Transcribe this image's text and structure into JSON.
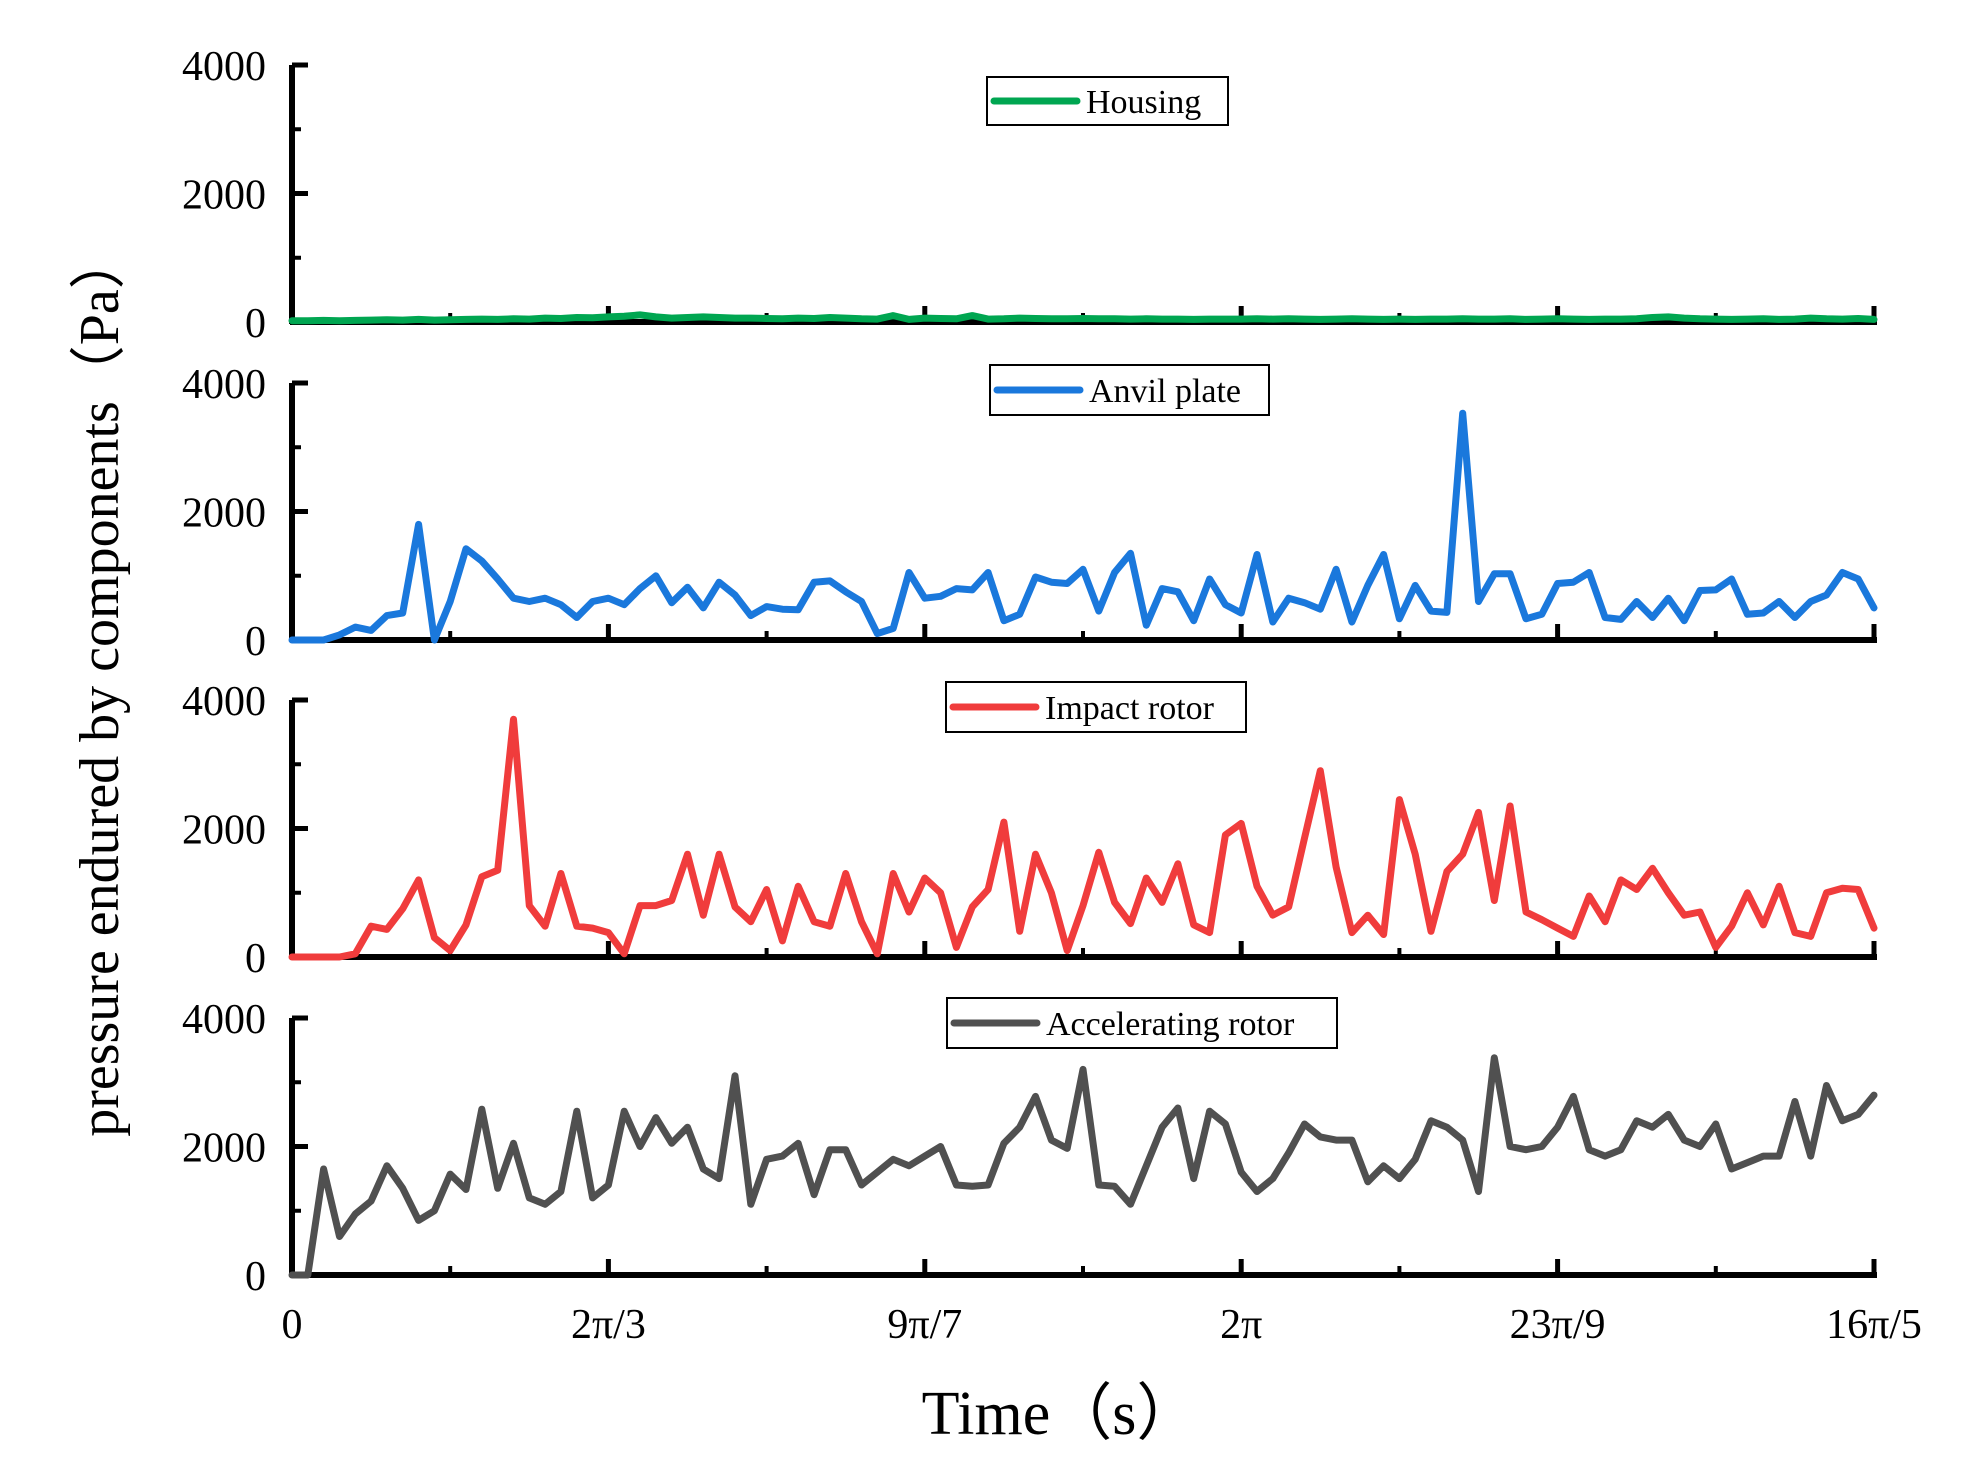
{
  "chart_data": {
    "type": "line",
    "xlabel": "Time（s）",
    "ylabel": "pressure endured by components（Pa）",
    "x_ticks": [
      "0",
      "2π/3",
      "9π/7",
      "2π",
      "23π/9",
      "16π/5"
    ],
    "y_ticks": [
      "0",
      "2000",
      "4000"
    ],
    "xlim": [
      0,
      100
    ],
    "ylim": [
      0,
      4000
    ],
    "x_step": 1,
    "series": [
      {
        "name": "Housing",
        "color": "#00A651",
        "values": [
          20,
          20,
          25,
          20,
          25,
          30,
          35,
          30,
          40,
          30,
          35,
          40,
          45,
          40,
          50,
          45,
          60,
          55,
          70,
          65,
          80,
          90,
          110,
          80,
          60,
          70,
          80,
          70,
          60,
          60,
          55,
          50,
          60,
          55,
          70,
          60,
          50,
          45,
          100,
          40,
          60,
          55,
          50,
          100,
          45,
          50,
          60,
          55,
          50,
          50,
          55,
          50,
          50,
          45,
          50,
          45,
          45,
          40,
          45,
          45,
          45,
          50,
          45,
          50,
          45,
          40,
          45,
          50,
          45,
          40,
          45,
          40,
          45,
          45,
          50,
          45,
          45,
          50,
          40,
          45,
          50,
          45,
          40,
          45,
          45,
          50,
          70,
          80,
          60,
          50,
          45,
          40,
          45,
          50,
          40,
          45,
          60,
          50,
          45,
          55,
          40
        ]
      },
      {
        "name": "Anvil plate",
        "color": "#1A78DC",
        "values": [
          0,
          0,
          0,
          80,
          200,
          150,
          380,
          420,
          1800,
          0,
          600,
          1420,
          1230,
          950,
          650,
          600,
          650,
          550,
          350,
          600,
          650,
          550,
          800,
          1000,
          580,
          820,
          500,
          900,
          700,
          380,
          520,
          480,
          470,
          900,
          920,
          750,
          600,
          100,
          180,
          1050,
          650,
          680,
          800,
          780,
          1050,
          300,
          400,
          980,
          900,
          880,
          1100,
          450,
          1050,
          1350,
          230,
          800,
          750,
          300,
          950,
          550,
          420,
          1330,
          280,
          650,
          580,
          480,
          1100,
          280,
          850,
          1330,
          330,
          850,
          450,
          430,
          3530,
          600,
          1030,
          1030,
          330,
          400,
          880,
          900,
          1050,
          350,
          320,
          600,
          350,
          650,
          300,
          770,
          780,
          950,
          400,
          420,
          600,
          350,
          600,
          700,
          1050,
          950,
          500
        ]
      },
      {
        "name": "Impact rotor",
        "color": "#F03C3C",
        "values": [
          0,
          0,
          0,
          0,
          50,
          480,
          430,
          750,
          1200,
          300,
          100,
          500,
          1250,
          1350,
          3700,
          800,
          480,
          1300,
          480,
          450,
          380,
          50,
          800,
          800,
          880,
          1600,
          650,
          1600,
          780,
          550,
          1050,
          250,
          1100,
          550,
          480,
          1300,
          550,
          50,
          1300,
          700,
          1230,
          1000,
          150,
          780,
          1050,
          2100,
          400,
          1600,
          1000,
          100,
          800,
          1630,
          850,
          520,
          1230,
          850,
          1450,
          500,
          380,
          1900,
          2080,
          1100,
          650,
          780,
          1850,
          2900,
          1400,
          380,
          650,
          350,
          2450,
          1600,
          400,
          1330,
          1600,
          2250,
          880,
          2350,
          700,
          580,
          450,
          320,
          950,
          550,
          1200,
          1050,
          1380,
          1000,
          650,
          700,
          150,
          480,
          1000,
          500,
          1100,
          380,
          320,
          1000,
          1070,
          1050,
          450
        ]
      },
      {
        "name": "Accelerating rotor",
        "color": "#505050",
        "values": [
          0,
          0,
          1650,
          600,
          950,
          1150,
          1700,
          1350,
          850,
          1000,
          1570,
          1330,
          2580,
          1350,
          2050,
          1200,
          1100,
          1300,
          2550,
          1200,
          1400,
          2550,
          2000,
          2450,
          2050,
          2300,
          1650,
          1500,
          3100,
          1100,
          1800,
          1850,
          2050,
          1250,
          1950,
          1950,
          1400,
          1600,
          1800,
          1700,
          1850,
          2000,
          1400,
          1380,
          1400,
          2050,
          2300,
          2780,
          2100,
          1970,
          3200,
          1400,
          1380,
          1100,
          1700,
          2300,
          2600,
          1500,
          2550,
          2350,
          1600,
          1300,
          1500,
          1900,
          2350,
          2150,
          2100,
          2100,
          1450,
          1700,
          1500,
          1800,
          2400,
          2300,
          2100,
          1300,
          3380,
          2000,
          1950,
          2000,
          2300,
          2780,
          1950,
          1850,
          1950,
          2400,
          2300,
          2500,
          2100,
          2000,
          2350,
          1650,
          1750,
          1850,
          1850,
          2700,
          1850,
          2950,
          2400,
          2500,
          2800
        ]
      }
    ]
  }
}
